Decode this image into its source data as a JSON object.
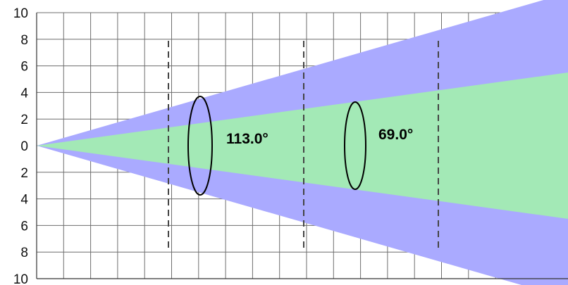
{
  "diagram": {
    "y_tick_labels": [
      "10",
      "8",
      "6",
      "4",
      "2",
      "0",
      "2",
      "4",
      "6",
      "8",
      "10"
    ],
    "wide_cone": {
      "angle_label": "113.0°",
      "color": "#aaaaff"
    },
    "narrow_cone": {
      "angle_label": "69.0°",
      "color": "#a3e9b6"
    },
    "grid_color": "#6e6e6e",
    "outline_color": "#000000"
  }
}
